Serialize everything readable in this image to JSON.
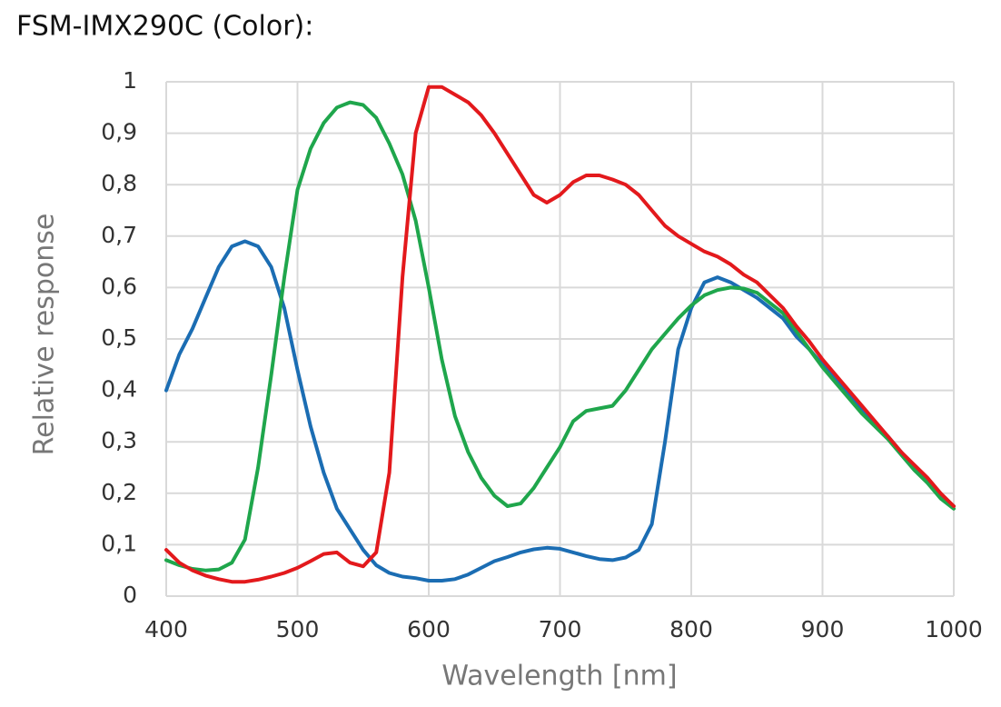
{
  "chart_data": {
    "type": "line",
    "title": "FSM-IMX290C (Color):",
    "x_label": "Wavelength [nm]",
    "y_label": "Relative response",
    "x": [
      400,
      410,
      420,
      430,
      440,
      450,
      460,
      470,
      480,
      490,
      500,
      510,
      520,
      530,
      540,
      550,
      560,
      570,
      580,
      590,
      600,
      610,
      620,
      630,
      640,
      650,
      660,
      670,
      680,
      690,
      700,
      710,
      720,
      730,
      740,
      750,
      760,
      770,
      780,
      790,
      800,
      810,
      820,
      830,
      840,
      850,
      860,
      870,
      880,
      890,
      900,
      910,
      920,
      930,
      940,
      950,
      960,
      970,
      980,
      990,
      1000
    ],
    "series": [
      {
        "color": "#1b6db3",
        "values": [
          0.4,
          0.47,
          0.52,
          0.58,
          0.64,
          0.68,
          0.69,
          0.68,
          0.64,
          0.56,
          0.44,
          0.33,
          0.24,
          0.17,
          0.13,
          0.09,
          0.06,
          0.045,
          0.038,
          0.035,
          0.03,
          0.03,
          0.033,
          0.042,
          0.055,
          0.068,
          0.076,
          0.085,
          0.091,
          0.094,
          0.092,
          0.085,
          0.078,
          0.072,
          0.07,
          0.075,
          0.09,
          0.14,
          0.3,
          0.48,
          0.56,
          0.61,
          0.62,
          0.61,
          0.595,
          0.58,
          0.56,
          0.54,
          0.505,
          0.48,
          0.45,
          0.42,
          0.39,
          0.36,
          0.335,
          0.31,
          0.28,
          0.25,
          0.225,
          0.195,
          0.175
        ]
      },
      {
        "color": "#1fa64c",
        "values": [
          0.07,
          0.06,
          0.053,
          0.05,
          0.052,
          0.065,
          0.11,
          0.25,
          0.43,
          0.62,
          0.79,
          0.87,
          0.92,
          0.95,
          0.96,
          0.955,
          0.93,
          0.88,
          0.82,
          0.73,
          0.6,
          0.46,
          0.35,
          0.28,
          0.23,
          0.195,
          0.175,
          0.18,
          0.21,
          0.25,
          0.29,
          0.34,
          0.36,
          0.365,
          0.37,
          0.4,
          0.44,
          0.48,
          0.51,
          0.54,
          0.565,
          0.585,
          0.595,
          0.6,
          0.598,
          0.59,
          0.57,
          0.55,
          0.515,
          0.48,
          0.445,
          0.415,
          0.385,
          0.355,
          0.33,
          0.305,
          0.275,
          0.245,
          0.22,
          0.19,
          0.17
        ]
      },
      {
        "color": "#e3191c",
        "values": [
          0.09,
          0.065,
          0.05,
          0.04,
          0.033,
          0.028,
          0.028,
          0.032,
          0.038,
          0.045,
          0.055,
          0.068,
          0.082,
          0.085,
          0.065,
          0.058,
          0.085,
          0.24,
          0.62,
          0.9,
          0.99,
          0.99,
          0.975,
          0.96,
          0.935,
          0.9,
          0.86,
          0.82,
          0.78,
          0.765,
          0.78,
          0.805,
          0.818,
          0.818,
          0.81,
          0.8,
          0.78,
          0.75,
          0.72,
          0.7,
          0.685,
          0.67,
          0.66,
          0.645,
          0.625,
          0.61,
          0.585,
          0.56,
          0.525,
          0.495,
          0.46,
          0.43,
          0.4,
          0.37,
          0.34,
          0.31,
          0.28,
          0.255,
          0.23,
          0.2,
          0.175
        ]
      }
    ],
    "xlim": [
      400,
      1000
    ],
    "xticks": [
      400,
      500,
      600,
      700,
      800,
      900,
      1000
    ],
    "ylim": [
      0,
      1
    ],
    "yticks": [
      0,
      {
        "value": 0.1,
        "label": "0,1"
      },
      {
        "value": 0.2,
        "label": "0,2"
      },
      {
        "value": 0.3,
        "label": "0,3"
      },
      {
        "value": 0.4,
        "label": "0,4"
      },
      {
        "value": 0.5,
        "label": "0,5"
      },
      {
        "value": 0.6,
        "label": "0,6"
      },
      {
        "value": 0.7,
        "label": "0,7"
      },
      {
        "value": 0.8,
        "label": "0,8"
      },
      {
        "value": 0.9,
        "label": "0,9"
      },
      1
    ],
    "grid": true
  }
}
